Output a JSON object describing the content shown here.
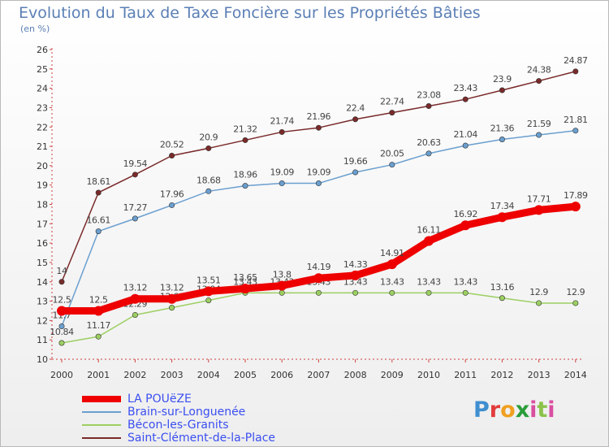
{
  "header": {
    "title": "Evolution du Taux de Taxe Foncière sur les Propriétés Bâties",
    "subtitle": "(en %)"
  },
  "logo": {
    "text": "Proxiti"
  },
  "chart_data": {
    "type": "line",
    "title": "Evolution du Taux de Taxe Foncière sur les Propriétés Bâties",
    "ylabel": "(en %)",
    "xlabel": "",
    "x": [
      "2000",
      "2001",
      "2002",
      "2003",
      "2004",
      "2005",
      "2006",
      "2007",
      "2008",
      "2009",
      "2010",
      "2011",
      "2012",
      "2013",
      "2014"
    ],
    "ylim": [
      10,
      26
    ],
    "yticks": [
      "10",
      "11",
      "12",
      "13",
      "14",
      "15",
      "16",
      "17",
      "18",
      "19",
      "20",
      "21",
      "22",
      "23",
      "24",
      "25",
      "26"
    ],
    "grid": false,
    "legend_position": "bottom-left",
    "series": [
      {
        "name": "Saint-Clément-de-la-Place",
        "color": "#7a2a2a",
        "values": [
          14,
          18.61,
          19.54,
          20.52,
          20.9,
          21.32,
          21.74,
          21.96,
          22.4,
          22.74,
          23.08,
          23.43,
          23.9,
          24.38,
          24.87
        ],
        "labels": [
          "14",
          "18.61",
          "19.54",
          "20.52",
          "20.9",
          "21.32",
          "21.74",
          "21.96",
          "22.4",
          "22.74",
          "23.08",
          "23.43",
          "23.9",
          "24.38",
          "24.87"
        ]
      },
      {
        "name": "Brain-sur-Longuenée",
        "color": "#6a9fcf",
        "values": [
          11.7,
          16.61,
          17.27,
          17.96,
          18.68,
          18.96,
          19.09,
          19.09,
          19.66,
          20.05,
          20.63,
          21.04,
          21.36,
          21.59,
          21.81
        ],
        "labels": [
          "11.7",
          "16.61",
          "17.27",
          "17.96",
          "18.68",
          "18.96",
          "19.09",
          "19.09",
          "19.66",
          "20.05",
          "20.63",
          "21.04",
          "21.36",
          "21.59",
          "21.81"
        ]
      },
      {
        "name": "Bécon-les-Granits",
        "color": "#9ccf62",
        "values": [
          10.84,
          11.17,
          12.29,
          12.66,
          13.04,
          13.43,
          13.43,
          13.43,
          13.43,
          13.43,
          13.43,
          13.43,
          13.16,
          12.9,
          12.9
        ],
        "labels": [
          "10.84",
          "11.17",
          "12.29",
          "12.66",
          "13.04",
          "13.43",
          "13.43",
          "13.43",
          "13.43",
          "13.43",
          "13.43",
          "13.43",
          "13.16",
          "12.9",
          "12.9"
        ]
      },
      {
        "name": "LA POUëZE",
        "color": "#ee0000",
        "values": [
          12.5,
          12.5,
          13.12,
          13.12,
          13.51,
          13.65,
          13.8,
          14.19,
          14.33,
          14.91,
          16.11,
          16.92,
          17.34,
          17.71,
          17.89
        ],
        "labels": [
          "12.5",
          "12.5",
          "13.12",
          "13.12",
          "13.51",
          "13.65",
          "13.8",
          "14.19",
          "14.33",
          "14.91",
          "16.11",
          "16.92",
          "17.34",
          "17.71",
          "17.89"
        ]
      }
    ],
    "legend": [
      {
        "name": "LA POUëZE",
        "color": "#ee0000"
      },
      {
        "name": "Brain-sur-Longuenée",
        "color": "#6a9fcf"
      },
      {
        "name": "Bécon-les-Granits",
        "color": "#9ccf62"
      },
      {
        "name": "Saint-Clément-de-la-Place",
        "color": "#7a2a2a"
      }
    ]
  }
}
